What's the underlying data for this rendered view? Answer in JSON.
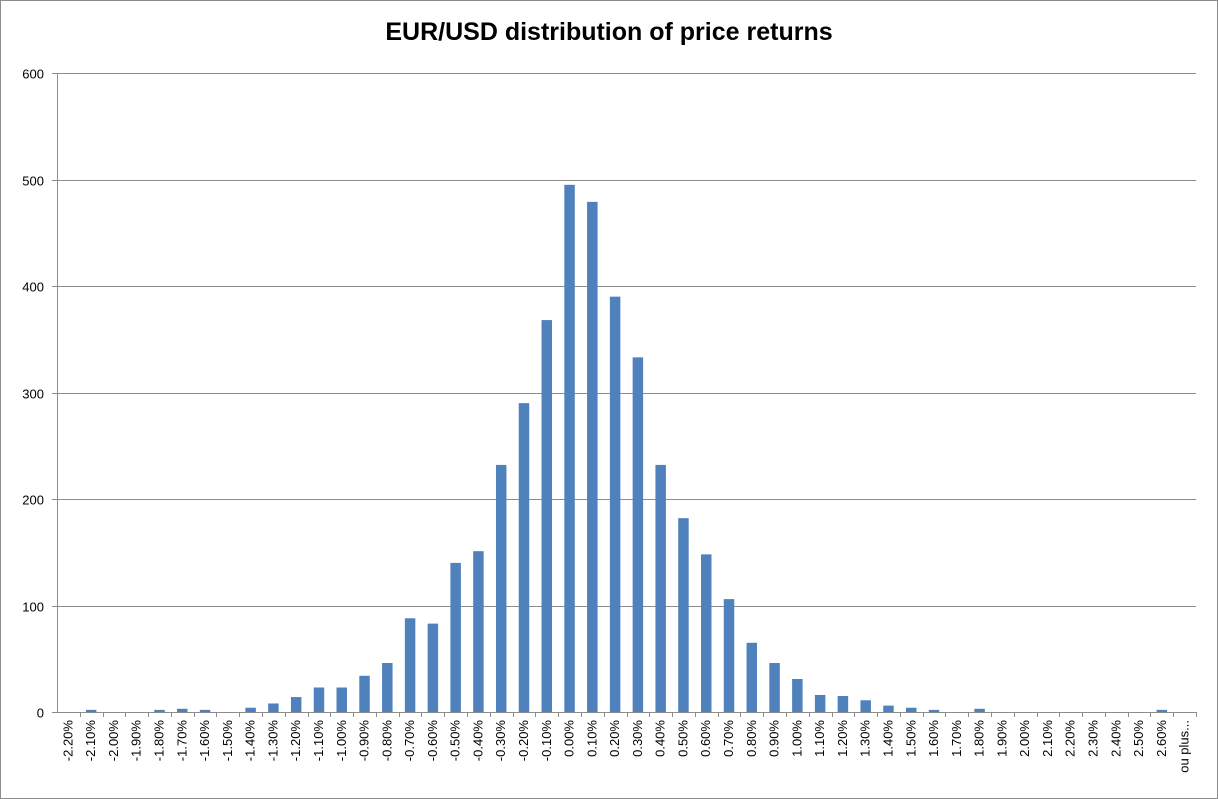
{
  "chart_data": {
    "type": "bar",
    "title": "EUR/USD distribution of price returns",
    "xlabel": "",
    "ylabel": "",
    "ylim": [
      0,
      600
    ],
    "yticks": [
      0,
      100,
      200,
      300,
      400,
      500,
      600
    ],
    "grid": true,
    "legend": "none",
    "bar_color": "#4f81bd",
    "categories": [
      "-2.20%",
      "-2.10%",
      "-2.00%",
      "-1.90%",
      "-1.80%",
      "-1.70%",
      "-1.60%",
      "-1.50%",
      "-1.40%",
      "-1.30%",
      "-1.20%",
      "-1.10%",
      "-1.00%",
      "-0.90%",
      "-0.80%",
      "-0.70%",
      "-0.60%",
      "-0.50%",
      "-0.40%",
      "-0.30%",
      "-0.20%",
      "-0.10%",
      "0.00%",
      "0.10%",
      "0.20%",
      "0.30%",
      "0.40%",
      "0.50%",
      "0.60%",
      "0.70%",
      "0.80%",
      "0.90%",
      "1.00%",
      "1.10%",
      "1.20%",
      "1.30%",
      "1.40%",
      "1.50%",
      "1.60%",
      "1.70%",
      "1.80%",
      "1.90%",
      "2.00%",
      "2.10%",
      "2.20%",
      "2.30%",
      "2.40%",
      "2.50%",
      "2.60%",
      "ou plus..."
    ],
    "values": [
      0,
      2,
      0,
      0,
      2,
      3,
      2,
      0,
      4,
      8,
      14,
      23,
      23,
      34,
      46,
      88,
      83,
      140,
      151,
      232,
      290,
      368,
      495,
      479,
      390,
      333,
      232,
      182,
      148,
      106,
      65,
      46,
      31,
      16,
      15,
      11,
      6,
      4,
      2,
      0,
      3,
      0,
      0,
      0,
      0,
      0,
      0,
      0,
      2,
      0
    ]
  }
}
